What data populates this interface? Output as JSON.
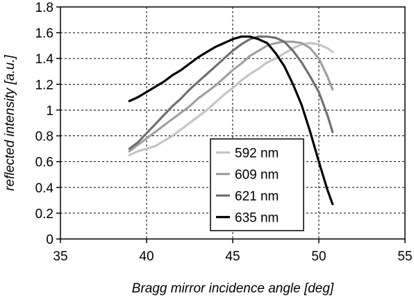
{
  "chart_data": {
    "type": "line",
    "title": "",
    "xlabel": "Bragg mirror incidence angle [deg]",
    "ylabel": "reflected intensity [a.u.]",
    "xlim": [
      35,
      55
    ],
    "ylim": [
      0,
      1.8
    ],
    "xticks": [
      "35",
      "40",
      "45",
      "50",
      "55"
    ],
    "yticks": [
      "0",
      "0.2",
      "0.4",
      "0.6",
      "0.8",
      "1",
      "1.2",
      "1.4",
      "1.6",
      "1.8"
    ],
    "grid": true,
    "legend_position": "bottom-right",
    "series": [
      {
        "name": "592 nm",
        "color": "#c4c4c4",
        "x": [
          39,
          39.5,
          40,
          40.5,
          41,
          41.5,
          42,
          42.5,
          43,
          43.5,
          44,
          44.5,
          45,
          45.5,
          46,
          46.5,
          47,
          47.5,
          48,
          48.5,
          49,
          49.5,
          50,
          50.5,
          50.8
        ],
        "y": [
          0.65,
          0.68,
          0.7,
          0.72,
          0.76,
          0.8,
          0.85,
          0.9,
          0.95,
          1.0,
          1.06,
          1.12,
          1.17,
          1.23,
          1.28,
          1.32,
          1.37,
          1.4,
          1.44,
          1.48,
          1.51,
          1.52,
          1.51,
          1.48,
          1.45
        ]
      },
      {
        "name": "609 nm",
        "color": "#a0a0a0",
        "x": [
          39,
          39.5,
          40,
          40.5,
          41,
          41.5,
          42,
          42.5,
          43,
          43.5,
          44,
          44.5,
          45,
          45.5,
          46,
          46.5,
          47,
          47.5,
          48,
          48.5,
          49,
          49.5,
          50,
          50.5,
          50.8
        ],
        "y": [
          0.68,
          0.73,
          0.78,
          0.83,
          0.88,
          0.93,
          0.98,
          1.03,
          1.09,
          1.14,
          1.19,
          1.25,
          1.31,
          1.36,
          1.42,
          1.46,
          1.5,
          1.52,
          1.53,
          1.53,
          1.52,
          1.48,
          1.4,
          1.26,
          1.16
        ]
      },
      {
        "name": "621 nm",
        "color": "#707070",
        "x": [
          39,
          39.5,
          40,
          40.5,
          41,
          41.5,
          42,
          42.5,
          43,
          43.5,
          44,
          44.5,
          45,
          45.5,
          46,
          46.5,
          47,
          47.5,
          48,
          48.5,
          49,
          49.5,
          50,
          50.5,
          50.8
        ],
        "y": [
          0.7,
          0.75,
          0.82,
          0.89,
          0.96,
          1.03,
          1.09,
          1.16,
          1.22,
          1.28,
          1.34,
          1.4,
          1.46,
          1.51,
          1.55,
          1.57,
          1.57,
          1.56,
          1.53,
          1.46,
          1.37,
          1.26,
          1.14,
          0.96,
          0.83
        ]
      },
      {
        "name": "635 nm",
        "color": "#000000",
        "x": [
          39,
          39.5,
          40,
          40.5,
          41,
          41.5,
          42,
          42.5,
          43,
          43.5,
          44,
          44.5,
          45,
          45.5,
          46,
          46.5,
          47,
          47.5,
          48,
          48.5,
          49,
          49.5,
          50,
          50.5,
          50.8
        ],
        "y": [
          1.07,
          1.1,
          1.14,
          1.18,
          1.22,
          1.27,
          1.31,
          1.36,
          1.41,
          1.45,
          1.49,
          1.52,
          1.55,
          1.57,
          1.57,
          1.55,
          1.52,
          1.44,
          1.34,
          1.2,
          1.04,
          0.83,
          0.6,
          0.38,
          0.27
        ]
      }
    ]
  }
}
